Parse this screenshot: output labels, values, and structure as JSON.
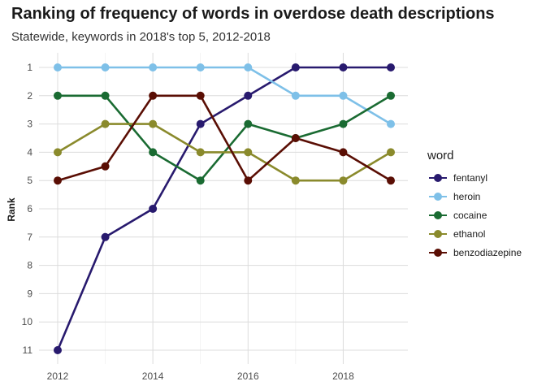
{
  "chart_data": {
    "type": "line",
    "title": "Ranking of frequency of words in overdose death descriptions",
    "subtitle": "Statewide, keywords in 2018's top 5, 2012-2018",
    "xlabel": "",
    "ylabel": "Rank",
    "x": [
      2012,
      2013,
      2014,
      2015,
      2016,
      2017,
      2018,
      2019
    ],
    "x_ticks": [
      2012,
      2014,
      2016,
      2018
    ],
    "x_tick_labels": [
      "2012",
      "2014",
      "2016",
      "2018"
    ],
    "y_ticks": [
      1,
      2,
      3,
      4,
      5,
      6,
      7,
      8,
      9,
      10,
      11
    ],
    "y_tick_labels": [
      "1",
      "2",
      "3",
      "4",
      "5",
      "6",
      "7",
      "8",
      "9",
      "10",
      "11"
    ],
    "y_reversed": true,
    "xlim": [
      2012,
      2019
    ],
    "ylim": [
      1,
      11
    ],
    "grid": true,
    "legend_title": "word",
    "legend_position": "right",
    "series": [
      {
        "name": "fentanyl",
        "color": "#281a6e",
        "values": [
          11,
          7,
          6,
          3,
          2,
          1,
          1,
          1
        ]
      },
      {
        "name": "heroin",
        "color": "#7ec0e8",
        "values": [
          1,
          1,
          1,
          1,
          1,
          2,
          2,
          3
        ]
      },
      {
        "name": "cocaine",
        "color": "#1a6b32",
        "values": [
          2,
          2,
          4,
          5,
          3,
          3.5,
          3,
          2
        ]
      },
      {
        "name": "ethanol",
        "color": "#8a8a2c",
        "values": [
          4,
          3,
          3,
          4,
          4,
          5,
          5,
          4
        ]
      },
      {
        "name": "benzodiazepine",
        "color": "#5a0e04",
        "values": [
          5,
          4.5,
          2,
          2,
          5,
          3.5,
          4,
          5
        ]
      }
    ]
  }
}
